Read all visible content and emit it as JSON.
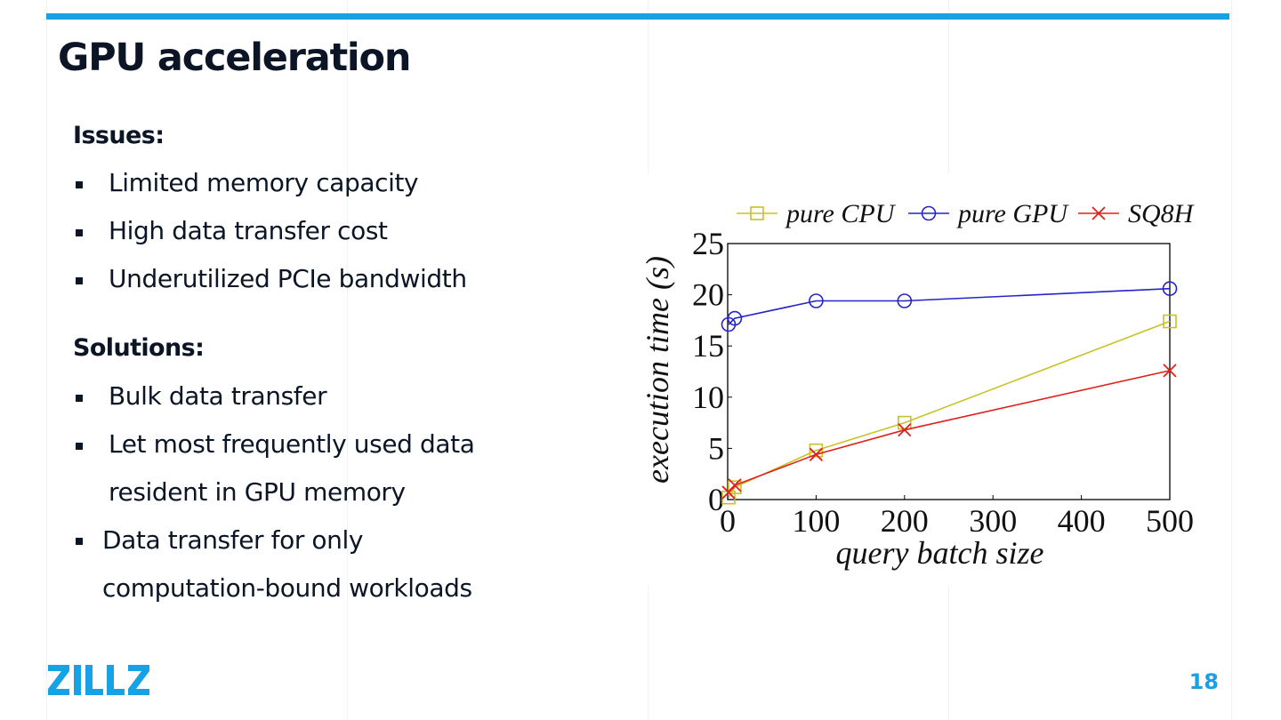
{
  "slide": {
    "title": "GPU acceleration",
    "page_number": "18",
    "logo_text": "ZILLIZ",
    "accent_color": "#17a2e6"
  },
  "issues": {
    "heading": "Issues:",
    "items": [
      "Limited memory capacity",
      "High data transfer cost",
      "Underutilized PCIe bandwidth"
    ]
  },
  "solutions": {
    "heading": "Solutions:",
    "items": [
      {
        "lines": [
          "Bulk data transfer"
        ]
      },
      {
        "lines": [
          "Let most frequently used data",
          "resident in GPU memory"
        ]
      },
      {
        "lines": [
          "Data transfer for only",
          "computation-bound workloads"
        ]
      }
    ]
  },
  "chart_data": {
    "type": "line",
    "xlabel": "query batch size",
    "ylabel": "execution time (s)",
    "xlim": [
      0,
      500
    ],
    "ylim": [
      0,
      25
    ],
    "xticks": [
      "0",
      "100",
      "200",
      "300",
      "400",
      "500"
    ],
    "yticks": [
      "0",
      "5",
      "10",
      "15",
      "20",
      "25"
    ],
    "legend_position": "top",
    "series": [
      {
        "name": "pure CPU",
        "color": "#c8c227",
        "marker": "square",
        "x": [
          1,
          8,
          100,
          200,
          500
        ],
        "y": [
          0.2,
          1.2,
          4.8,
          7.5,
          17.4
        ]
      },
      {
        "name": "pure GPU",
        "color": "#2424c8",
        "marker": "circle",
        "x": [
          1,
          8,
          100,
          200,
          500
        ],
        "y": [
          17.1,
          17.7,
          19.4,
          19.4,
          20.6
        ]
      },
      {
        "name": "SQ8H",
        "color": "#e0201c",
        "marker": "x",
        "x": [
          1,
          8,
          100,
          200,
          500
        ],
        "y": [
          0.7,
          1.4,
          4.4,
          6.8,
          12.6
        ]
      }
    ]
  }
}
